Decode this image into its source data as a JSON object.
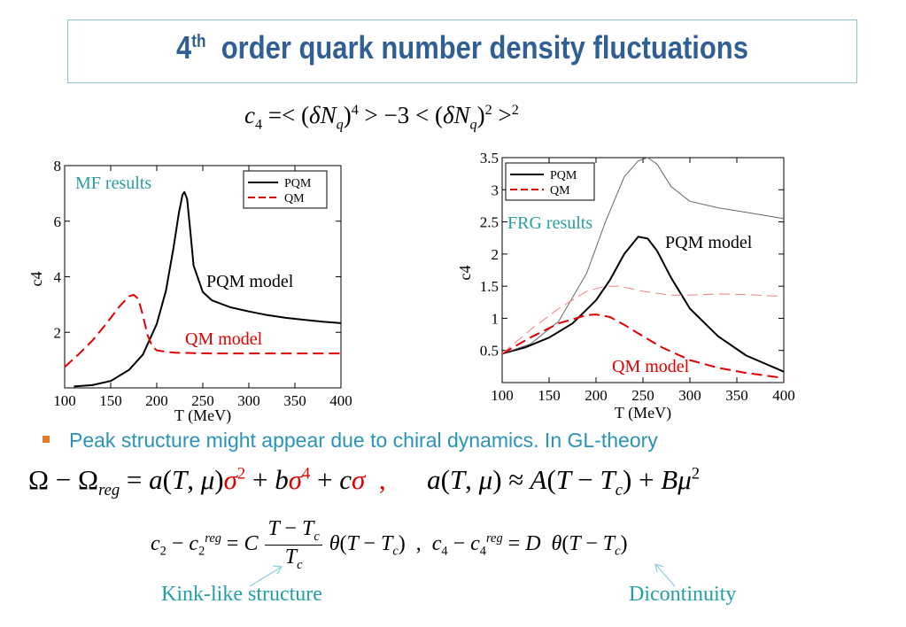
{
  "title": {
    "prefix": "4",
    "sup": "th",
    "rest": "order quark number density fluctuations"
  },
  "chart_data": [
    {
      "type": "line",
      "xlabel": "T (MeV)",
      "ylabel": "c4",
      "xlim": [
        100,
        400
      ],
      "ylim": [
        0,
        8
      ],
      "xticks": [
        "100",
        "150",
        "200",
        "250",
        "300",
        "350",
        "400"
      ],
      "yticks": [
        "2",
        "4",
        "6",
        "8"
      ],
      "legend": [
        "PQM",
        "QM"
      ],
      "legend_position": "top-right",
      "annotations": [
        "MF results",
        "PQM model",
        "QM model"
      ],
      "series": [
        {
          "name": "PQM",
          "color": "#000000",
          "dash": "solid",
          "x": [
            110,
            130,
            150,
            170,
            185,
            200,
            210,
            218,
            224,
            228,
            230,
            233,
            236,
            240,
            250,
            260,
            280,
            300,
            320,
            340,
            360,
            380,
            400
          ],
          "y": [
            0.05,
            0.1,
            0.25,
            0.65,
            1.2,
            2.3,
            3.5,
            5.0,
            6.3,
            6.95,
            7.05,
            6.8,
            5.8,
            4.4,
            3.45,
            3.15,
            2.9,
            2.75,
            2.62,
            2.52,
            2.45,
            2.38,
            2.33
          ]
        },
        {
          "name": "QM",
          "color": "#e00000",
          "dash": "dashed",
          "x": [
            100,
            115,
            130,
            145,
            160,
            170,
            175,
            180,
            185,
            190,
            195,
            200,
            210,
            220,
            240,
            260,
            300,
            350,
            400
          ],
          "y": [
            0.75,
            1.2,
            1.7,
            2.3,
            2.95,
            3.3,
            3.35,
            3.2,
            2.6,
            1.9,
            1.5,
            1.35,
            1.3,
            1.27,
            1.25,
            1.24,
            1.24,
            1.24,
            1.24
          ]
        }
      ]
    },
    {
      "type": "line",
      "xlabel": "T (MeV)",
      "ylabel": "c4",
      "xlim": [
        100,
        400
      ],
      "ylim": [
        0,
        3.5
      ],
      "xticks": [
        "100",
        "150",
        "200",
        "250",
        "300",
        "350",
        "400"
      ],
      "yticks": [
        "0.5",
        "1",
        "1.5",
        "2",
        "2.5",
        "3",
        "3.5"
      ],
      "legend": [
        "PQM",
        "QM"
      ],
      "legend_position": "top-left",
      "annotations": [
        "FRG results",
        "PQM model",
        "QM model"
      ],
      "series": [
        {
          "name": "PQM",
          "color": "#000000",
          "dash": "solid",
          "width": 2,
          "x": [
            100,
            125,
            150,
            175,
            200,
            215,
            230,
            245,
            255,
            265,
            280,
            300,
            330,
            360,
            400
          ],
          "y": [
            0.45,
            0.55,
            0.7,
            0.92,
            1.28,
            1.6,
            2.0,
            2.27,
            2.24,
            2.05,
            1.63,
            1.15,
            0.72,
            0.42,
            0.17
          ]
        },
        {
          "name": "PQM (thin)",
          "color": "#666666",
          "dash": "solid",
          "width": 1,
          "x": [
            100,
            130,
            160,
            190,
            210,
            230,
            245,
            255,
            265,
            280,
            300,
            330,
            360,
            400
          ],
          "y": [
            0.45,
            0.6,
            0.95,
            1.7,
            2.5,
            3.2,
            3.45,
            3.5,
            3.4,
            3.05,
            2.82,
            2.72,
            2.65,
            2.55
          ]
        },
        {
          "name": "QM",
          "color": "#e00000",
          "dash": "dashed",
          "width": 2,
          "x": [
            100,
            130,
            160,
            190,
            200,
            215,
            230,
            250,
            270,
            300,
            330,
            360,
            400
          ],
          "y": [
            0.45,
            0.7,
            0.92,
            1.05,
            1.06,
            1.02,
            0.9,
            0.72,
            0.55,
            0.35,
            0.23,
            0.15,
            0.07
          ]
        },
        {
          "name": "QM (thin)",
          "color": "#f08080",
          "dash": "dashed",
          "width": 1,
          "x": [
            100,
            130,
            160,
            190,
            210,
            225,
            250,
            280,
            300,
            330,
            360,
            400
          ],
          "y": [
            0.45,
            0.82,
            1.15,
            1.42,
            1.5,
            1.5,
            1.42,
            1.36,
            1.36,
            1.38,
            1.37,
            1.34
          ]
        }
      ]
    }
  ],
  "bullet": "Peak structure might appear due to chiral dynamics. In GL-theory",
  "notes": {
    "kink": "Kink-like structure",
    "discontinuity": "Dicontinuity"
  }
}
